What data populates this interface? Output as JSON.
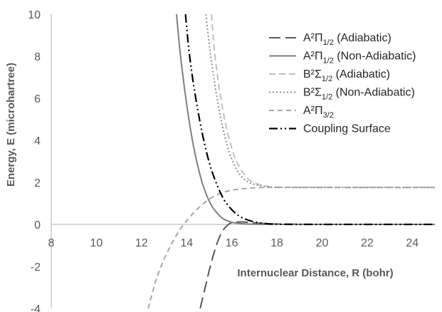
{
  "chart_data": {
    "type": "line",
    "title": "",
    "xlabel": "Internuclear Distance, R (bohr)",
    "ylabel": "Energy, E (microhartree)",
    "xlim": [
      8,
      25
    ],
    "ylim": [
      -4,
      10
    ],
    "x_ticks": [
      8,
      10,
      12,
      14,
      16,
      18,
      20,
      22,
      24
    ],
    "y_ticks": [
      -4,
      -2,
      0,
      2,
      4,
      6,
      8,
      10
    ],
    "x_tick_labels": [
      "8",
      "10",
      "12",
      "14",
      "16",
      "18",
      "20",
      "22",
      "24"
    ],
    "y_tick_labels": [
      "-4",
      "-2",
      "0",
      "2",
      "4",
      "6",
      "8",
      "10"
    ],
    "grid": false,
    "legend_position": "top-right",
    "series": [
      {
        "name": "A²Π",
        "name_sub": "1/2",
        "name_suffix": " (Adiabatic)",
        "color": "#595959",
        "dash": "16 7",
        "width": 2,
        "points": [
          [
            14.6,
            -4.0
          ],
          [
            14.8,
            -3.1
          ],
          [
            15.0,
            -2.2
          ],
          [
            15.2,
            -1.4
          ],
          [
            15.4,
            -0.75
          ],
          [
            15.6,
            -0.3
          ],
          [
            15.8,
            -0.05
          ],
          [
            16.0,
            0.08
          ],
          [
            16.4,
            0.12
          ],
          [
            17.0,
            0.07
          ],
          [
            18.0,
            0.02
          ],
          [
            20.0,
            0.0
          ],
          [
            22.0,
            0.0
          ],
          [
            25.0,
            0.0
          ]
        ]
      },
      {
        "name": "A²Π",
        "name_sub": "1/2",
        "name_suffix": " (Non-Adiabatic)",
        "color": "#7f7f7f",
        "dash": "",
        "width": 2,
        "points": [
          [
            13.55,
            10.0
          ],
          [
            13.7,
            8.3
          ],
          [
            13.9,
            6.5
          ],
          [
            14.1,
            5.0
          ],
          [
            14.3,
            3.75
          ],
          [
            14.5,
            2.75
          ],
          [
            14.7,
            1.95
          ],
          [
            14.9,
            1.35
          ],
          [
            15.1,
            0.9
          ],
          [
            15.3,
            0.6
          ],
          [
            15.5,
            0.37
          ],
          [
            15.7,
            0.22
          ],
          [
            16.0,
            0.1
          ],
          [
            16.5,
            0.03
          ],
          [
            17.0,
            0.01
          ],
          [
            18.0,
            0.0
          ],
          [
            20.0,
            0.0
          ],
          [
            25.0,
            0.0
          ]
        ]
      },
      {
        "name": "B²Σ",
        "name_sub": "1/2",
        "name_suffix": " (Adiabatic)",
        "color": "#bfbfbf",
        "dash": "9 5",
        "width": 2,
        "points": [
          [
            15.1,
            10.0
          ],
          [
            15.2,
            8.6
          ],
          [
            15.35,
            7.2
          ],
          [
            15.5,
            6.1
          ],
          [
            15.7,
            4.9
          ],
          [
            15.9,
            4.0
          ],
          [
            16.1,
            3.3
          ],
          [
            16.3,
            2.8
          ],
          [
            16.5,
            2.45
          ],
          [
            16.8,
            2.1
          ],
          [
            17.2,
            1.9
          ],
          [
            17.6,
            1.8
          ],
          [
            18.0,
            1.77
          ],
          [
            19.0,
            1.76
          ],
          [
            20.0,
            1.76
          ],
          [
            22.0,
            1.76
          ],
          [
            25.0,
            1.76
          ]
        ]
      },
      {
        "name": "B²Σ",
        "name_sub": "1/2",
        "name_suffix": " (Non-Adiabatic)",
        "color": "#8c8c8c",
        "dash": "2 3",
        "width": 2,
        "points": [
          [
            14.85,
            10.0
          ],
          [
            15.0,
            8.6
          ],
          [
            15.2,
            7.0
          ],
          [
            15.4,
            5.7
          ],
          [
            15.6,
            4.6
          ],
          [
            15.8,
            3.75
          ],
          [
            16.0,
            3.1
          ],
          [
            16.25,
            2.55
          ],
          [
            16.5,
            2.2
          ],
          [
            16.8,
            1.98
          ],
          [
            17.2,
            1.85
          ],
          [
            17.7,
            1.78
          ],
          [
            18.2,
            1.76
          ],
          [
            20.0,
            1.76
          ],
          [
            22.0,
            1.76
          ],
          [
            25.0,
            1.76
          ]
        ]
      },
      {
        "name": "A²Π",
        "name_sub": "3/2",
        "name_suffix": "",
        "color": "#a6a6a6",
        "dash": "7 5",
        "width": 2,
        "points": [
          [
            12.3,
            -4.0
          ],
          [
            12.6,
            -2.8
          ],
          [
            12.9,
            -1.9
          ],
          [
            13.2,
            -1.2
          ],
          [
            13.5,
            -0.6
          ],
          [
            13.8,
            -0.1
          ],
          [
            14.1,
            0.3
          ],
          [
            14.4,
            0.65
          ],
          [
            14.7,
            0.95
          ],
          [
            15.0,
            1.2
          ],
          [
            15.3,
            1.38
          ],
          [
            15.6,
            1.52
          ],
          [
            16.0,
            1.63
          ],
          [
            16.5,
            1.7
          ],
          [
            17.0,
            1.74
          ],
          [
            18.0,
            1.76
          ],
          [
            20.0,
            1.76
          ],
          [
            25.0,
            1.76
          ]
        ]
      },
      {
        "name": "Coupling Surface",
        "name_sub": "",
        "name_suffix": "",
        "color": "#000000",
        "dash": "12 4 2 4 2 4",
        "width": 2.2,
        "points": [
          [
            13.95,
            10.0
          ],
          [
            14.1,
            8.3
          ],
          [
            14.3,
            6.7
          ],
          [
            14.5,
            5.4
          ],
          [
            14.7,
            4.3
          ],
          [
            14.9,
            3.35
          ],
          [
            15.1,
            2.6
          ],
          [
            15.3,
            2.0
          ],
          [
            15.5,
            1.5
          ],
          [
            15.7,
            1.1
          ],
          [
            16.0,
            0.7
          ],
          [
            16.3,
            0.42
          ],
          [
            16.6,
            0.25
          ],
          [
            17.0,
            0.12
          ],
          [
            17.5,
            0.04
          ],
          [
            18.0,
            0.01
          ],
          [
            19.0,
            0.0
          ],
          [
            21.0,
            0.0
          ],
          [
            25.0,
            0.0
          ]
        ]
      }
    ]
  }
}
